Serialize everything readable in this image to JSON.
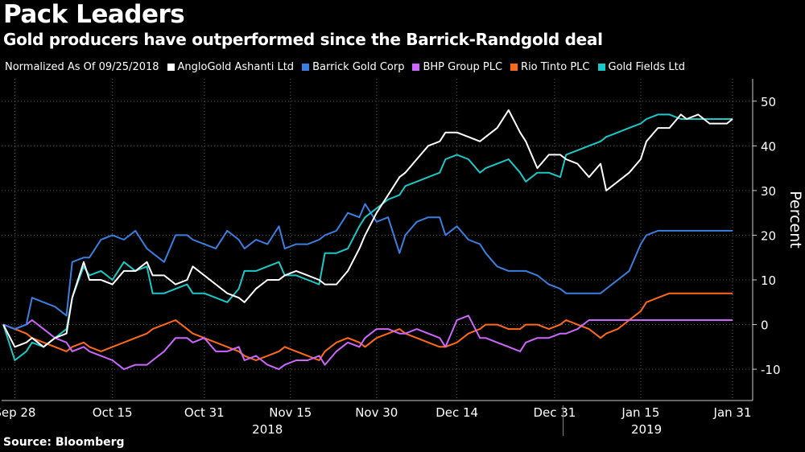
{
  "title": "Pack Leaders",
  "subtitle": "Gold producers have outperformed since the Barrick-Randgold deal",
  "legend_prefix": "Normalized As Of 09/25/2018",
  "source": "Source: Bloomberg",
  "chart_data": {
    "type": "line",
    "ylabel": "Percent",
    "ylim": [
      -17,
      55
    ],
    "y_ticks": [
      50,
      40,
      30,
      20,
      10,
      0,
      -10
    ],
    "x_ticks": [
      {
        "label": "Sep 28",
        "x": 2
      },
      {
        "label": "Oct 15",
        "x": 19
      },
      {
        "label": "Oct 31",
        "x": 35
      },
      {
        "label": "Nov 15",
        "x": 50
      },
      {
        "label": "Nov 30",
        "x": 65
      },
      {
        "label": "Dec 14",
        "x": 79
      },
      {
        "label": "Dec 31",
        "x": 96
      },
      {
        "label": "Jan 15",
        "x": 111
      },
      {
        "label": "Jan 31",
        "x": 127
      }
    ],
    "year_labels": [
      {
        "label": "2018",
        "x": 46
      },
      {
        "label": "2019",
        "x": 112
      }
    ],
    "year_divider_x": 97.5,
    "xlim": [
      -0.3,
      130.5
    ],
    "grid": true,
    "series": [
      {
        "name": "AngloGold Ashanti Ltd",
        "color": "#ffffff",
        "x": [
          0,
          2,
          4,
          5,
          7,
          9,
          11,
          12,
          14,
          15,
          17,
          19,
          21,
          23,
          25,
          26,
          28,
          30,
          32,
          33,
          35,
          37,
          39,
          41,
          42,
          44,
          46,
          48,
          49,
          51,
          53,
          55,
          56,
          58,
          60,
          62,
          63,
          65,
          67,
          69,
          70,
          72,
          74,
          76,
          77,
          79,
          81,
          83,
          84,
          86,
          88,
          90,
          91,
          93,
          95,
          97,
          98,
          100,
          102,
          104,
          105,
          107,
          109,
          111,
          112,
          114,
          116,
          118,
          119,
          121,
          123,
          125,
          126,
          127
        ],
        "y": [
          0,
          -5,
          -4,
          -3,
          -5,
          -3,
          -2,
          6,
          14,
          10,
          10,
          9,
          12,
          12,
          14,
          11,
          11,
          9,
          10,
          13,
          11,
          9,
          7,
          6,
          5,
          8,
          10,
          10,
          11,
          12,
          11,
          10,
          9,
          9,
          12,
          17,
          20,
          25,
          29,
          33,
          34,
          37,
          40,
          41,
          43,
          43,
          42,
          41,
          42,
          44,
          48,
          43,
          41,
          35,
          38,
          38,
          37,
          36,
          33,
          36,
          30,
          32,
          34,
          37,
          41,
          44,
          44,
          47,
          46,
          47,
          45,
          45,
          45,
          46
        ],
        "__unused": false
      },
      {
        "name": "Barrick Gold Corp",
        "color": "#3a7fe0",
        "x": [
          0,
          2,
          4,
          5,
          7,
          9,
          11,
          12,
          14,
          15,
          17,
          19,
          21,
          23,
          25,
          26,
          28,
          30,
          32,
          33,
          35,
          37,
          39,
          41,
          42,
          44,
          46,
          48,
          49,
          51,
          53,
          55,
          56,
          58,
          60,
          62,
          63,
          65,
          67,
          69,
          70,
          72,
          74,
          76,
          77,
          79,
          81,
          83,
          84,
          86,
          88,
          90,
          91,
          93,
          95,
          97,
          98,
          100,
          102,
          104,
          105,
          107,
          109,
          111,
          112,
          114,
          116,
          118,
          119,
          121,
          123,
          125,
          126,
          127
        ],
        "y": [
          0,
          -1,
          0,
          6,
          5,
          4,
          2,
          14,
          15,
          15,
          19,
          20,
          19,
          21,
          17,
          16,
          14,
          20,
          20,
          19,
          18,
          17,
          21,
          19,
          17,
          19,
          18,
          22,
          17,
          18,
          18,
          19,
          20,
          21,
          25,
          24,
          27,
          23,
          24,
          16,
          20,
          23,
          24,
          24,
          20,
          22,
          19,
          18,
          16,
          13,
          12,
          12,
          12,
          11,
          9,
          8,
          7,
          7,
          7,
          7,
          8,
          10,
          12,
          18,
          20,
          21,
          21,
          21,
          21,
          21,
          21,
          21,
          21,
          21
        ]
      },
      {
        "name": "BHP Group PLC",
        "color": "#cc66ff",
        "x": [
          0,
          2,
          4,
          5,
          7,
          9,
          11,
          12,
          14,
          15,
          17,
          19,
          21,
          23,
          25,
          26,
          28,
          30,
          32,
          33,
          35,
          37,
          39,
          41,
          42,
          44,
          46,
          48,
          49,
          51,
          53,
          55,
          56,
          58,
          60,
          62,
          63,
          65,
          67,
          69,
          70,
          72,
          74,
          76,
          77,
          79,
          81,
          83,
          84,
          86,
          88,
          90,
          91,
          93,
          95,
          97,
          98,
          100,
          102,
          104,
          105,
          107,
          109,
          111,
          112,
          114,
          116,
          118,
          119,
          121,
          123,
          125,
          126,
          127
        ],
        "y": [
          0,
          -1,
          0,
          1,
          -1,
          -3,
          -4,
          -6,
          -5,
          -6,
          -7,
          -8,
          -10,
          -9,
          -9,
          -8,
          -6,
          -3,
          -3,
          -4,
          -3,
          -6,
          -6,
          -5,
          -8,
          -7,
          -9,
          -10,
          -9,
          -8,
          -8,
          -7,
          -9,
          -6,
          -4,
          -5,
          -3,
          -1,
          -1,
          -2,
          -2,
          -1,
          -2,
          -3,
          -5,
          1,
          2,
          -3,
          -3,
          -4,
          -5,
          -6,
          -4,
          -3,
          -3,
          -2,
          -2,
          -1,
          1,
          1,
          1,
          1,
          1,
          1,
          1,
          1,
          1,
          1,
          1,
          1,
          1,
          1,
          1,
          1
        ]
      },
      {
        "name": "Rio Tinto PLC",
        "color": "#ff6a1a",
        "x": [
          0,
          2,
          4,
          5,
          7,
          9,
          11,
          12,
          14,
          15,
          17,
          19,
          21,
          23,
          25,
          26,
          28,
          30,
          32,
          33,
          35,
          37,
          39,
          41,
          42,
          44,
          46,
          48,
          49,
          51,
          53,
          55,
          56,
          58,
          60,
          62,
          63,
          65,
          67,
          69,
          70,
          72,
          74,
          76,
          77,
          79,
          81,
          83,
          84,
          86,
          88,
          90,
          91,
          93,
          95,
          97,
          98,
          100,
          102,
          104,
          105,
          107,
          109,
          111,
          112,
          114,
          116,
          118,
          119,
          121,
          123,
          125,
          126,
          127
        ],
        "y": [
          0,
          -1,
          -2,
          -3,
          -4,
          -5,
          -6,
          -5,
          -4,
          -5,
          -6,
          -5,
          -4,
          -3,
          -2,
          -1,
          0,
          1,
          -1,
          -2,
          -3,
          -4,
          -5,
          -6,
          -7,
          -8,
          -7,
          -6,
          -5,
          -6,
          -7,
          -8,
          -6,
          -4,
          -3,
          -4,
          -5,
          -3,
          -2,
          -1,
          -2,
          -3,
          -4,
          -5,
          -5,
          -4,
          -2,
          -1,
          0,
          0,
          -1,
          -1,
          0,
          0,
          -1,
          0,
          1,
          0,
          -1,
          -3,
          -2,
          -1,
          1,
          3,
          5,
          6,
          7,
          7,
          7,
          7,
          7,
          7,
          7,
          7
        ]
      },
      {
        "name": "Gold Fields Ltd",
        "color": "#1ac8c8",
        "x": [
          0,
          2,
          4,
          5,
          7,
          9,
          11,
          12,
          14,
          15,
          17,
          19,
          21,
          23,
          25,
          26,
          28,
          30,
          32,
          33,
          35,
          37,
          39,
          41,
          42,
          44,
          46,
          48,
          49,
          51,
          53,
          55,
          56,
          58,
          60,
          62,
          63,
          65,
          67,
          69,
          70,
          72,
          74,
          76,
          77,
          79,
          81,
          83,
          84,
          86,
          88,
          90,
          91,
          93,
          95,
          97,
          98,
          100,
          102,
          104,
          105,
          107,
          109,
          111,
          112,
          114,
          116,
          118,
          119,
          121,
          123,
          125,
          126,
          127
        ],
        "y": [
          0,
          -8,
          -6,
          -4,
          -5,
          -3,
          -1,
          6,
          13,
          11,
          12,
          10,
          14,
          12,
          13,
          7,
          7,
          8,
          9,
          7,
          7,
          6,
          5,
          8,
          12,
          12,
          13,
          14,
          11,
          11,
          10,
          9,
          16,
          16,
          17,
          22,
          24,
          26,
          28,
          29,
          31,
          32,
          33,
          34,
          37,
          38,
          37,
          34,
          35,
          36,
          37,
          34,
          32,
          34,
          34,
          33,
          38,
          39,
          40,
          41,
          42,
          43,
          44,
          45,
          46,
          47,
          47,
          46,
          46,
          46,
          46,
          46,
          46,
          46
        ]
      }
    ]
  }
}
